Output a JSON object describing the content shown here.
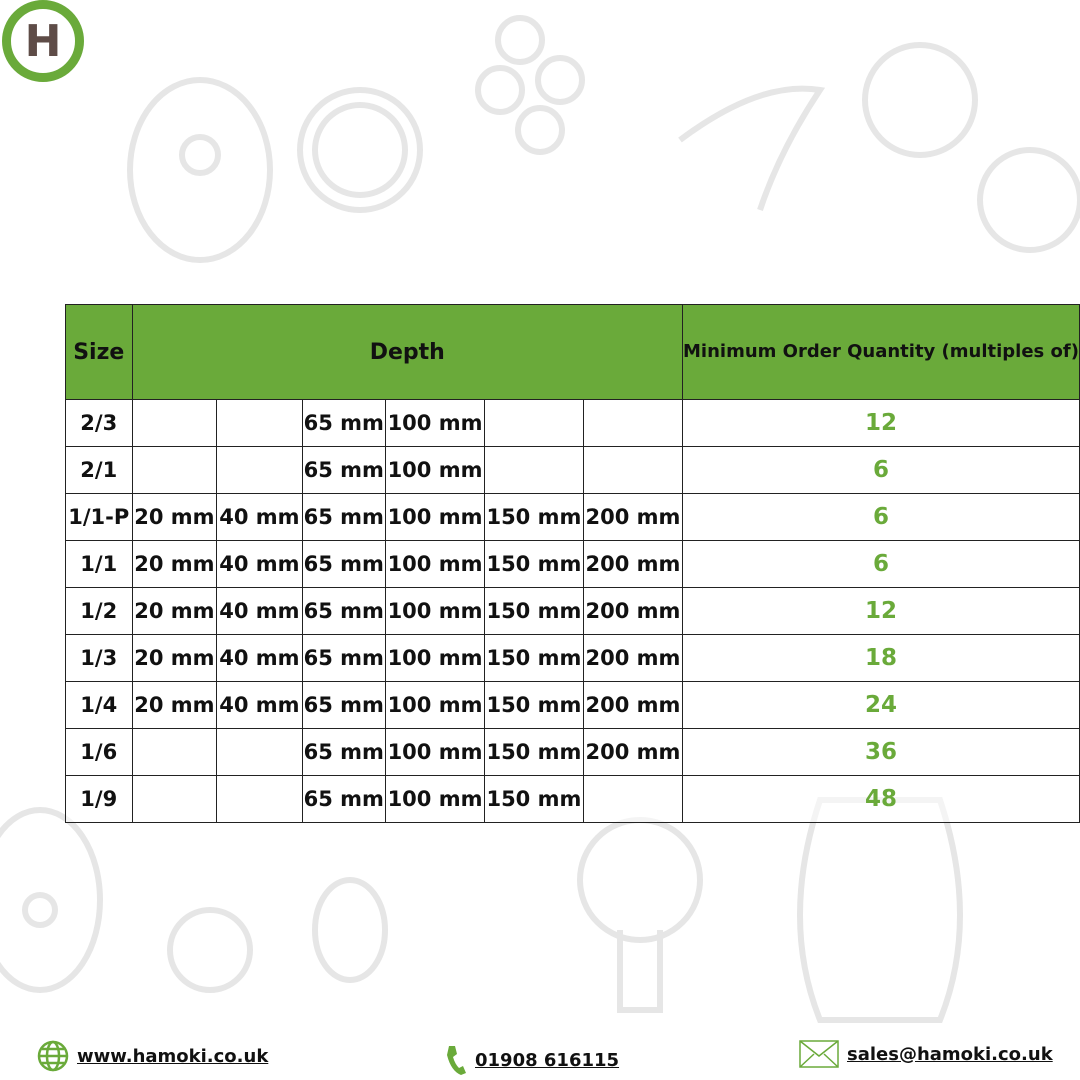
{
  "logo": {
    "letter": "H"
  },
  "table": {
    "headers": {
      "size": "Size",
      "depth": "Depth",
      "moq": "Minimum Order Quantity (multiples of)"
    },
    "rows": [
      {
        "size": "2/3",
        "depths": [
          "",
          "",
          "65 mm",
          "100 mm",
          "",
          ""
        ],
        "moq": "12"
      },
      {
        "size": "2/1",
        "depths": [
          "",
          "",
          "65 mm",
          "100 mm",
          "",
          ""
        ],
        "moq": "6"
      },
      {
        "size": "1/1-P",
        "depths": [
          "20 mm",
          "40 mm",
          "65 mm",
          "100 mm",
          "150 mm",
          "200 mm"
        ],
        "moq": "6"
      },
      {
        "size": "1/1",
        "depths": [
          "20 mm",
          "40 mm",
          "65 mm",
          "100 mm",
          "150 mm",
          "200 mm"
        ],
        "moq": "6"
      },
      {
        "size": "1/2",
        "depths": [
          "20 mm",
          "40 mm",
          "65 mm",
          "100 mm",
          "150 mm",
          "200 mm"
        ],
        "moq": "12"
      },
      {
        "size": "1/3",
        "depths": [
          "20 mm",
          "40 mm",
          "65 mm",
          "100 mm",
          "150 mm",
          "200 mm"
        ],
        "moq": "18"
      },
      {
        "size": "1/4",
        "depths": [
          "20 mm",
          "40 mm",
          "65 mm",
          "100 mm",
          "150 mm",
          "200 mm"
        ],
        "moq": "24"
      },
      {
        "size": "1/6",
        "depths": [
          "",
          "",
          "65 mm",
          "100 mm",
          "150 mm",
          "200 mm"
        ],
        "moq": "36"
      },
      {
        "size": "1/9",
        "depths": [
          "",
          "",
          "65 mm",
          "100 mm",
          "150 mm",
          ""
        ],
        "moq": "48"
      }
    ]
  },
  "footer": {
    "website": "www.hamoki.co.uk",
    "phone": "01908 616115",
    "email": "sales@hamoki.co.uk"
  },
  "colors": {
    "brand_green": "#6aaa3a",
    "logo_letter": "#5e4c47"
  }
}
